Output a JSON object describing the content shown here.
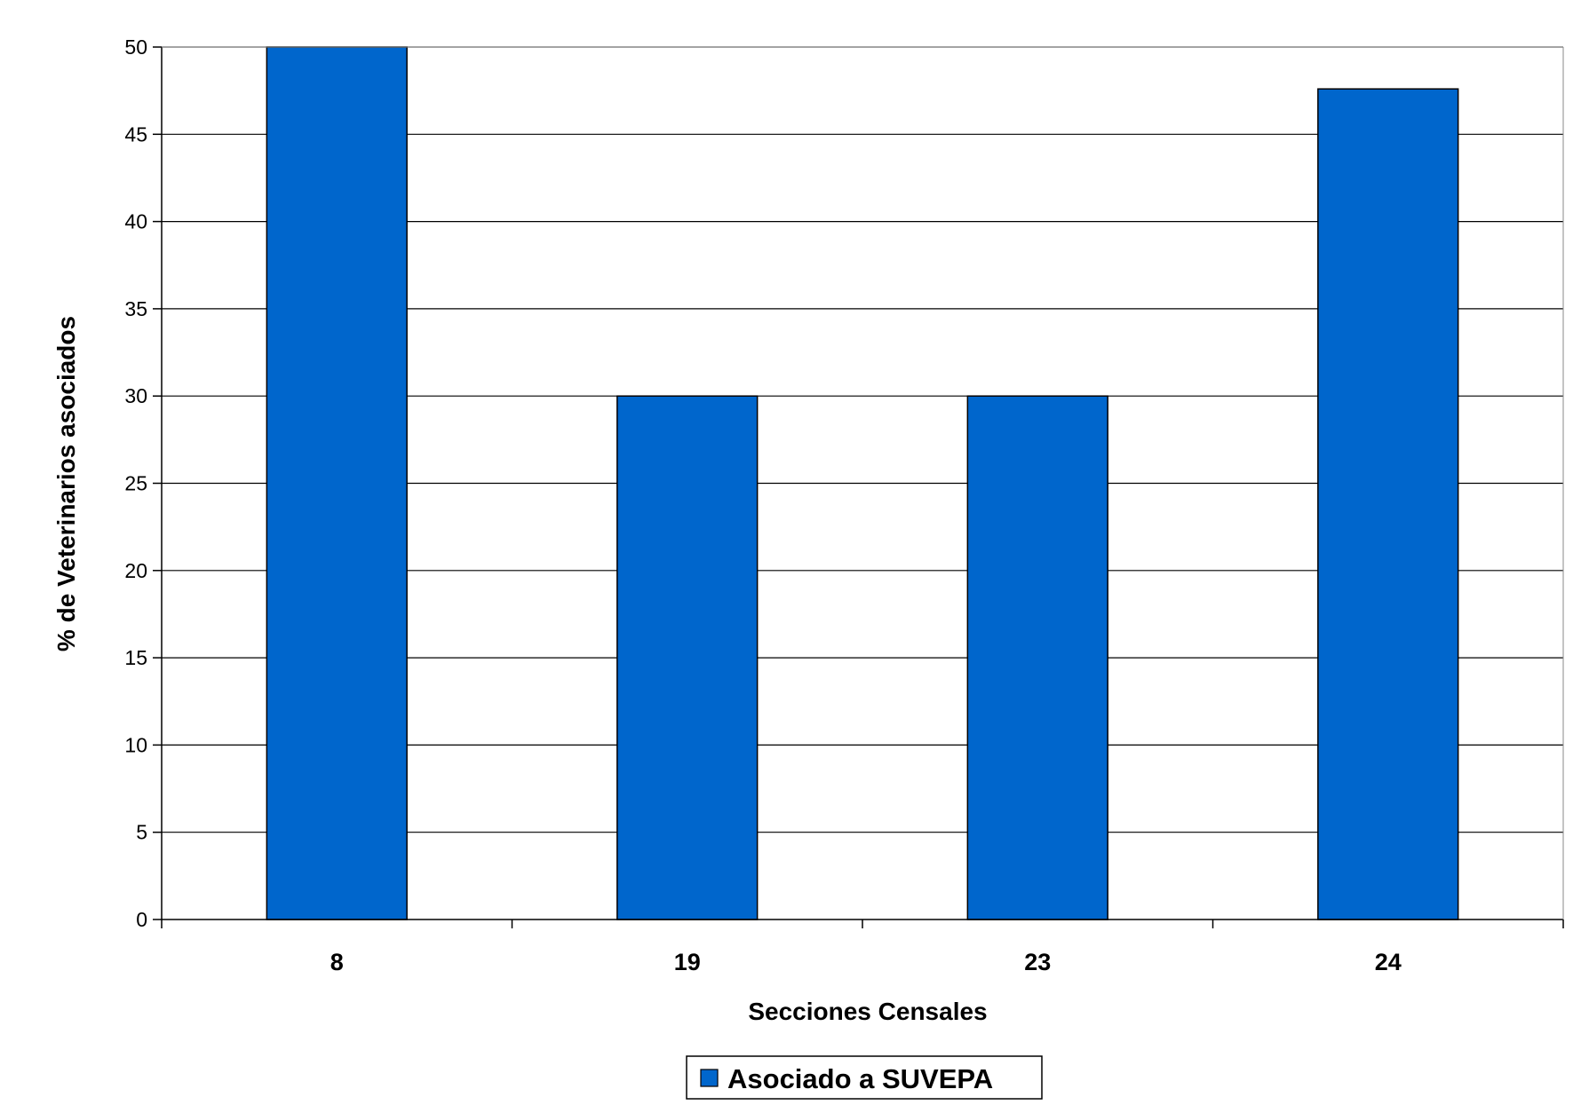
{
  "chart_data": {
    "type": "bar",
    "title": "",
    "xlabel": "Secciones Censales",
    "ylabel": "% de Veterinarios asociados",
    "categories": [
      "8",
      "19",
      "23",
      "24"
    ],
    "series": [
      {
        "name": "Asociado a SUVEPA",
        "values": [
          50,
          30,
          30,
          47.6
        ],
        "color": "#0066CC"
      }
    ],
    "ylim": [
      0,
      50
    ],
    "yticks": [
      "0",
      "5",
      "10",
      "15",
      "20",
      "25",
      "30",
      "35",
      "40",
      "45",
      "50"
    ],
    "grid": true,
    "legend_position": "bottom"
  }
}
